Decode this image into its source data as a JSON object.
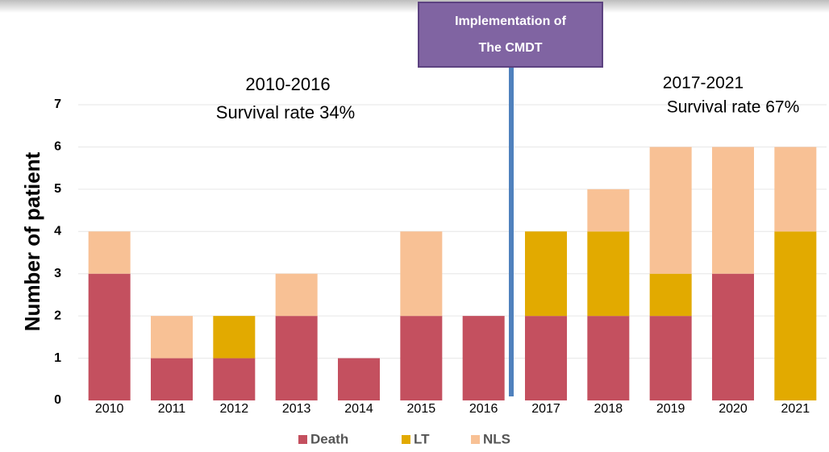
{
  "chart_data": {
    "type": "bar",
    "stacked": true,
    "y_label": "Number of patient",
    "categories": [
      "2010",
      "2011",
      "2012",
      "2013",
      "2014",
      "2015",
      "2016",
      "2017",
      "2018",
      "2019",
      "2020",
      "2021"
    ],
    "series": [
      {
        "name": "Death",
        "color": "#c4505f",
        "values": [
          3,
          1,
          1,
          2,
          1,
          2,
          2,
          2,
          2,
          2,
          3,
          0
        ]
      },
      {
        "name": "LT",
        "color": "#e2aa00",
        "values": [
          0,
          0,
          1,
          0,
          0,
          0,
          0,
          2,
          2,
          1,
          0,
          4
        ]
      },
      {
        "name": "NLS",
        "color": "#f8c195",
        "values": [
          1,
          1,
          0,
          1,
          0,
          2,
          0,
          0,
          1,
          3,
          3,
          2
        ]
      }
    ],
    "ylim": [
      0,
      7
    ],
    "yticks": [
      0,
      1,
      2,
      3,
      4,
      5,
      6,
      7
    ],
    "grid": true,
    "annotations": {
      "period1": "2010-2016",
      "rate1": "Survival rate 34%",
      "period2": "2017-2021",
      "rate2": "Survival rate 67%",
      "box_line1": "Implementation of",
      "box_line2": "The CMDT"
    }
  }
}
